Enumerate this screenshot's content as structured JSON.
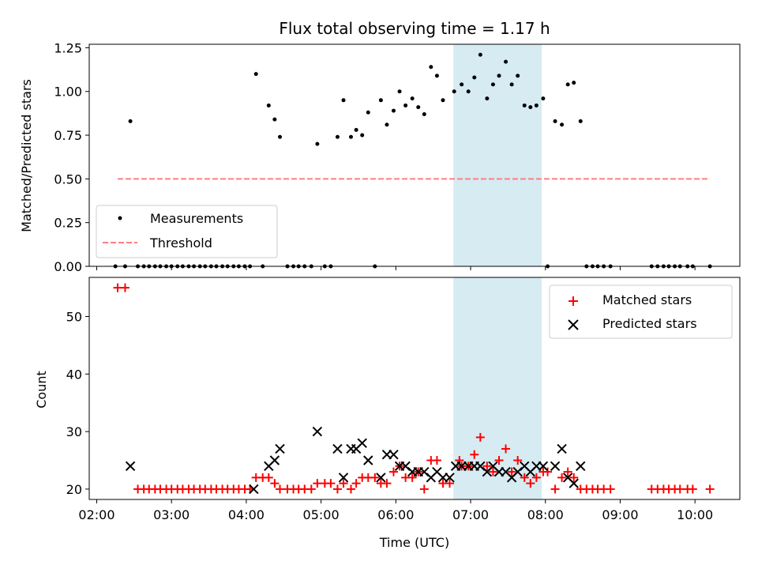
{
  "chart_data": {
    "type": "scatter",
    "title": "Flux total observing time = 1.17 h",
    "xlabel": "Time (UTC)",
    "xlim": [
      1.9,
      10.6
    ],
    "x_ticks": [
      {
        "value": 2,
        "label": "02:00"
      },
      {
        "value": 3,
        "label": "03:00"
      },
      {
        "value": 4,
        "label": "04:00"
      },
      {
        "value": 5,
        "label": "05:00"
      },
      {
        "value": 6,
        "label": "06:00"
      },
      {
        "value": 7,
        "label": "07:00"
      },
      {
        "value": 8,
        "label": "08:00"
      },
      {
        "value": 9,
        "label": "09:00"
      },
      {
        "value": 10,
        "label": "10:00"
      }
    ],
    "highlight_span": {
      "x": [
        6.77,
        7.95
      ],
      "color": "#add8e6"
    },
    "panels": [
      {
        "ylabel": "Matched/Predicted stars",
        "ylim": [
          0,
          1.27
        ],
        "y_ticks": [
          {
            "value": 0,
            "label": "0.00"
          },
          {
            "value": 0.25,
            "label": "0.25"
          },
          {
            "value": 0.5,
            "label": "0.50"
          },
          {
            "value": 0.75,
            "label": "0.75"
          },
          {
            "value": 1.0,
            "label": "1.00"
          },
          {
            "value": 1.25,
            "label": "1.25"
          }
        ],
        "legend": [
          {
            "label": "Measurements",
            "marker": "dot",
            "color": "#000000"
          },
          {
            "label": "Threshold",
            "marker": "dashed-line",
            "color": "#ff7f7f"
          }
        ],
        "legend_position": "lower-left",
        "threshold": {
          "x": [
            2.28,
            10.2
          ],
          "y": 0.5
        },
        "measurements": {
          "x": [
            2.25,
            2.38,
            2.45,
            2.55,
            2.63,
            2.7,
            2.78,
            2.85,
            2.93,
            3.0,
            3.08,
            3.15,
            3.23,
            3.3,
            3.38,
            3.45,
            3.53,
            3.6,
            3.68,
            3.75,
            3.83,
            3.9,
            3.98,
            4.05,
            4.13,
            4.22,
            4.3,
            4.38,
            4.45,
            4.55,
            4.63,
            4.7,
            4.78,
            4.87,
            4.95,
            5.05,
            5.13,
            5.22,
            5.3,
            5.4,
            5.47,
            5.55,
            5.63,
            5.72,
            5.8,
            5.88,
            5.97,
            6.05,
            6.13,
            6.22,
            6.3,
            6.38,
            6.47,
            6.55,
            6.63,
            6.78,
            6.88,
            6.97,
            7.05,
            7.13,
            7.22,
            7.3,
            7.38,
            7.47,
            7.55,
            7.63,
            7.72,
            7.8,
            7.88,
            7.97,
            8.03,
            8.13,
            8.22,
            8.3,
            8.38,
            8.47,
            8.55,
            8.63,
            8.7,
            8.78,
            8.87,
            9.42,
            9.5,
            9.58,
            9.65,
            9.73,
            9.8,
            9.9,
            9.97,
            10.2
          ],
          "y": [
            0,
            0,
            0.83,
            0,
            0,
            0,
            0,
            0,
            0,
            0,
            0,
            0,
            0,
            0,
            0,
            0,
            0,
            0,
            0,
            0,
            0,
            0,
            0,
            0,
            1.1,
            0,
            0.92,
            0.84,
            0.74,
            0,
            0,
            0,
            0,
            0,
            0.7,
            0,
            0,
            0.74,
            0.95,
            0.74,
            0.78,
            0.75,
            0.88,
            0,
            0.95,
            0.81,
            0.89,
            1.0,
            0.92,
            0.96,
            0.91,
            0.87,
            1.14,
            1.09,
            0.95,
            1.0,
            1.04,
            1.0,
            1.08,
            1.21,
            0.96,
            1.04,
            1.09,
            1.17,
            1.04,
            1.09,
            0.92,
            0.91,
            0.92,
            0.96,
            0,
            0.83,
            0.81,
            1.04,
            1.05,
            0.83,
            0,
            0,
            0,
            0,
            0,
            0,
            0,
            0,
            0,
            0,
            0,
            0,
            0,
            0
          ]
        }
      },
      {
        "ylabel": "Count",
        "ylim": [
          18.2,
          56.8
        ],
        "y_ticks": [
          {
            "value": 20,
            "label": "20"
          },
          {
            "value": 30,
            "label": "30"
          },
          {
            "value": 40,
            "label": "40"
          },
          {
            "value": 50,
            "label": "50"
          }
        ],
        "legend": [
          {
            "label": "Matched stars",
            "marker": "plus",
            "color": "#ff0000"
          },
          {
            "label": "Predicted stars",
            "marker": "x",
            "color": "#000000"
          }
        ],
        "legend_position": "upper-right",
        "matched": {
          "x": [
            2.28,
            2.38,
            2.55,
            2.63,
            2.7,
            2.78,
            2.85,
            2.93,
            3.0,
            3.08,
            3.15,
            3.23,
            3.3,
            3.38,
            3.45,
            3.53,
            3.6,
            3.68,
            3.75,
            3.83,
            3.9,
            3.98,
            4.05,
            4.13,
            4.22,
            4.3,
            4.38,
            4.45,
            4.55,
            4.63,
            4.7,
            4.78,
            4.87,
            4.95,
            5.05,
            5.13,
            5.22,
            5.3,
            5.4,
            5.47,
            5.55,
            5.63,
            5.72,
            5.8,
            5.88,
            5.97,
            6.05,
            6.13,
            6.22,
            6.3,
            6.38,
            6.47,
            6.55,
            6.63,
            6.72,
            6.85,
            6.88,
            6.97,
            7.05,
            7.13,
            7.22,
            7.3,
            7.38,
            7.47,
            7.55,
            7.63,
            7.72,
            7.8,
            7.88,
            7.97,
            8.03,
            8.13,
            8.22,
            8.3,
            8.38,
            8.47,
            8.55,
            8.63,
            8.7,
            8.78,
            8.87,
            9.42,
            9.5,
            9.58,
            9.65,
            9.73,
            9.8,
            9.9,
            9.97,
            10.2
          ],
          "y": [
            55,
            55,
            20,
            20,
            20,
            20,
            20,
            20,
            20,
            20,
            20,
            20,
            20,
            20,
            20,
            20,
            20,
            20,
            20,
            20,
            20,
            20,
            20,
            22,
            22,
            22,
            21,
            20,
            20,
            20,
            20,
            20,
            20,
            21,
            21,
            21,
            20,
            21,
            20,
            21,
            22,
            22,
            22,
            21,
            21,
            23,
            24,
            22,
            22,
            23,
            20,
            25,
            25,
            21,
            21,
            25,
            24,
            24,
            26,
            29,
            24,
            23,
            25,
            27,
            23,
            25,
            22,
            21,
            22,
            23,
            23,
            20,
            22,
            23,
            22,
            20,
            20,
            20,
            20,
            20,
            20,
            20,
            20,
            20,
            20,
            20,
            20,
            20,
            20,
            20
          ]
        },
        "predicted": {
          "x": [
            2.45,
            4.1,
            4.3,
            4.38,
            4.45,
            4.95,
            5.22,
            5.3,
            5.4,
            5.47,
            5.55,
            5.63,
            5.8,
            5.88,
            5.97,
            6.05,
            6.13,
            6.22,
            6.3,
            6.38,
            6.47,
            6.55,
            6.63,
            6.72,
            6.8,
            6.88,
            6.97,
            7.05,
            7.13,
            7.22,
            7.3,
            7.38,
            7.47,
            7.55,
            7.63,
            7.72,
            7.8,
            7.88,
            7.97,
            8.13,
            8.22,
            8.3,
            8.38,
            8.47
          ],
          "y": [
            24,
            20,
            24,
            25,
            27,
            30,
            27,
            22,
            27,
            27,
            28,
            25,
            22,
            26,
            26,
            24,
            24,
            23,
            23,
            23,
            22,
            23,
            22,
            22,
            24,
            24,
            24,
            24,
            24,
            23,
            24,
            23,
            23,
            22,
            23,
            24,
            23,
            24,
            24,
            24,
            27,
            22,
            21,
            24
          ]
        }
      }
    ]
  }
}
